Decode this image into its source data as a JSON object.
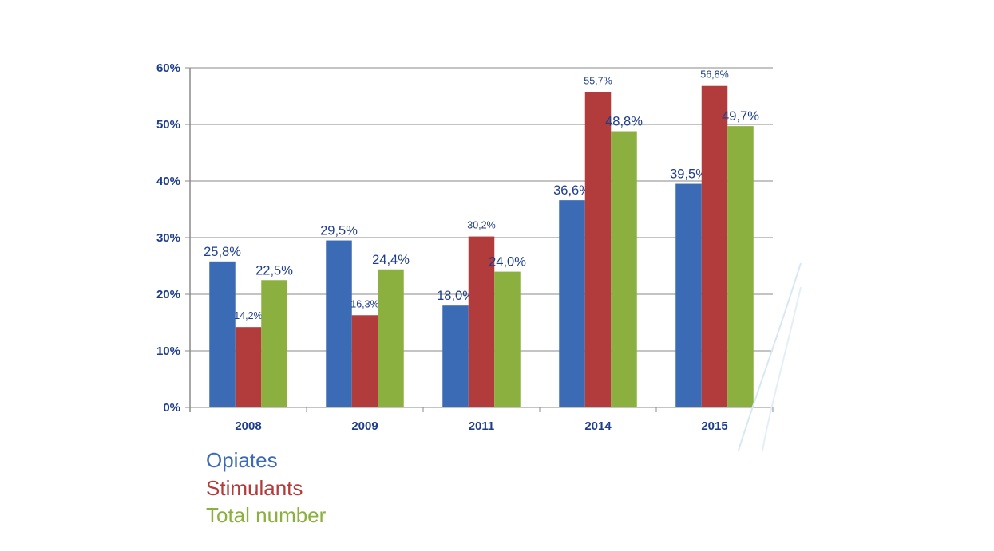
{
  "chart_data": {
    "type": "bar",
    "title": "",
    "xlabel": "",
    "ylabel": "",
    "ylim": [
      0,
      60
    ],
    "yticks": [
      "0%",
      "10%",
      "20%",
      "30%",
      "40%",
      "50%",
      "60%"
    ],
    "grid": true,
    "legend_position": "bottom-left",
    "categories": [
      "2008",
      "2009",
      "2011",
      "2014",
      "2015"
    ],
    "series": [
      {
        "name": "Opiates",
        "color": "#3B6BB4",
        "values": [
          25.8,
          29.5,
          18.0,
          36.6,
          39.5
        ],
        "labels": [
          "25,8%",
          "29,5%",
          "18,0%",
          "36,6%",
          "39,5%"
        ]
      },
      {
        "name": "Stimulants",
        "color": "#B23C3B",
        "values": [
          14.2,
          16.3,
          30.2,
          55.7,
          56.8
        ],
        "labels": [
          "14,2%",
          "16,3%",
          "30,2%",
          "55,7%",
          "56,8%"
        ]
      },
      {
        "name": "Total number",
        "color": "#8CB03F",
        "values": [
          22.5,
          24.4,
          24.0,
          48.8,
          49.7
        ],
        "labels": [
          "22,5%",
          "24,4%",
          "24,0%",
          "48,8%",
          "49,7%"
        ]
      }
    ]
  }
}
